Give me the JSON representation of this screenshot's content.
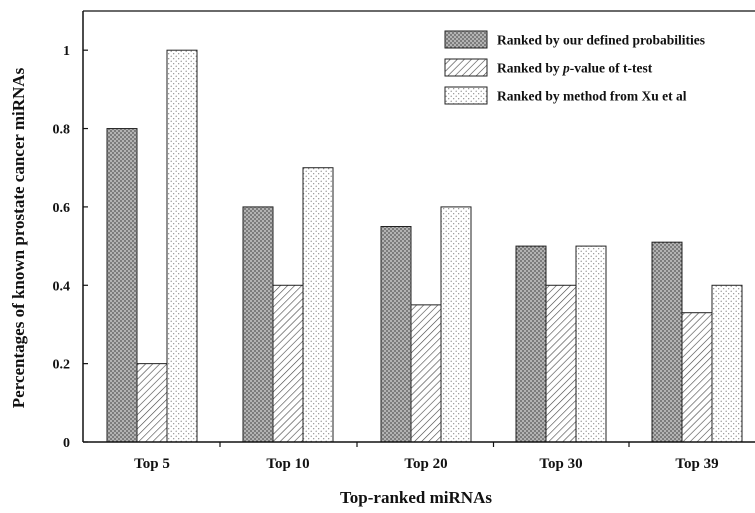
{
  "chart_data": {
    "type": "bar",
    "title": "",
    "xlabel": "Top-ranked miRNAs",
    "ylabel": "Percentages of known prostate cancer miRNAs",
    "categories": [
      "Top 5",
      "Top 10",
      "Top 20",
      "Top 30",
      "Top 39"
    ],
    "ylim": [
      0,
      1.1
    ],
    "yticks": [
      0,
      0.2,
      0.4,
      0.6,
      0.8,
      1
    ],
    "ytick_labels": [
      "0",
      "0.2",
      "0.4",
      "0.6",
      "0.8",
      "1"
    ],
    "grid": false,
    "legend_position": "top-right",
    "series": [
      {
        "name": "Ranked by our defined probabilities",
        "values": [
          0.8,
          0.6,
          0.55,
          0.5,
          0.51
        ],
        "pattern": "dense-dots",
        "color": "#8a8a8a"
      },
      {
        "name": "Ranked by p-value of t-test",
        "name_prefix": "Ranked by ",
        "name_italic": "p",
        "name_suffix": "-value of t-test",
        "values": [
          0.2,
          0.4,
          0.35,
          0.4,
          0.33
        ],
        "pattern": "diagonal-hatch",
        "color": "#555555"
      },
      {
        "name": "Ranked by method from Xu et al",
        "values": [
          1.0,
          0.7,
          0.6,
          0.5,
          0.4
        ],
        "pattern": "sparse-dots",
        "color": "#aaaaaa"
      }
    ]
  }
}
